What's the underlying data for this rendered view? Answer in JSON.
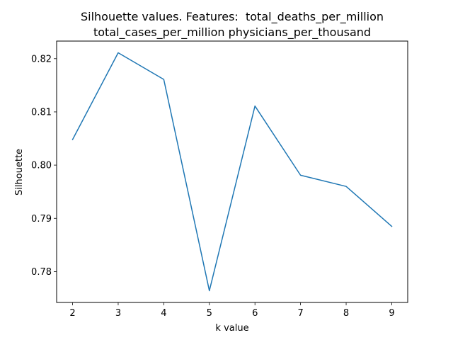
{
  "chart_data": {
    "type": "line",
    "title_lines": [
      "Silhouette values. Features:  total_deaths_per_million",
      "total_cases_per_million physicians_per_thousand"
    ],
    "xlabel": "k value",
    "ylabel": "Silhouette",
    "x": [
      2,
      3,
      4,
      5,
      6,
      7,
      8,
      9
    ],
    "series": [
      {
        "values": [
          0.8048,
          0.8211,
          0.8161,
          0.7764,
          0.8111,
          0.7981,
          0.796,
          0.7885
        ]
      }
    ],
    "xticks": [
      "2",
      "3",
      "4",
      "5",
      "6",
      "7",
      "8",
      "9"
    ],
    "yticks": [
      "0.78",
      "0.79",
      "0.80",
      "0.81",
      "0.82"
    ],
    "ytick_values": [
      0.78,
      0.79,
      0.8,
      0.81,
      0.82
    ],
    "xlim": [
      1.65,
      9.35
    ],
    "ylim": [
      0.7742,
      0.8233
    ],
    "line_color": "#1f77b4",
    "grid": false,
    "legend": "none"
  }
}
